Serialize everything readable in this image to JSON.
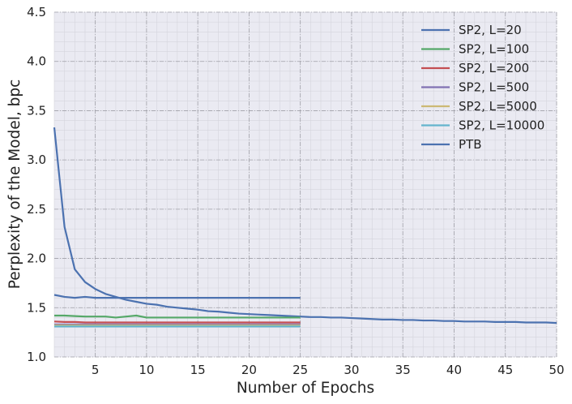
{
  "chart_data": {
    "type": "line",
    "xlabel": "Number of Epochs",
    "ylabel": "Perplexity of the Model, bpc",
    "xlim": [
      1,
      50
    ],
    "ylim": [
      1.0,
      4.5
    ],
    "x_ticks": [
      5,
      10,
      15,
      20,
      25,
      30,
      35,
      40,
      45,
      50
    ],
    "y_ticks": [
      1.0,
      1.5,
      2.0,
      2.5,
      3.0,
      3.5,
      4.0,
      4.5
    ],
    "x_tick_labels": [
      "5",
      "10",
      "15",
      "20",
      "25",
      "30",
      "35",
      "40",
      "45",
      "50"
    ],
    "y_tick_labels": [
      "1.0",
      "1.5",
      "2.0",
      "2.5",
      "3.0",
      "3.5",
      "4.0",
      "4.5"
    ],
    "grid": true,
    "legend_position": "top-right",
    "series": [
      {
        "name": "SP2, L=20",
        "color": "#4c72b0",
        "x": [
          1,
          2,
          3,
          4,
          5,
          6,
          7,
          8,
          9,
          10,
          11,
          12,
          13,
          14,
          15,
          16,
          17,
          18,
          19,
          20,
          21,
          22,
          23,
          24,
          25
        ],
        "y": [
          1.63,
          1.61,
          1.6,
          1.61,
          1.6,
          1.6,
          1.6,
          1.6,
          1.6,
          1.6,
          1.6,
          1.6,
          1.6,
          1.6,
          1.6,
          1.6,
          1.6,
          1.6,
          1.6,
          1.6,
          1.6,
          1.6,
          1.6,
          1.6,
          1.6
        ]
      },
      {
        "name": "SP2, L=100",
        "color": "#55a868",
        "x": [
          1,
          2,
          3,
          4,
          5,
          6,
          7,
          8,
          9,
          10,
          11,
          12,
          13,
          14,
          15,
          16,
          17,
          18,
          19,
          20,
          21,
          22,
          23,
          24,
          25
        ],
        "y": [
          1.42,
          1.42,
          1.415,
          1.41,
          1.41,
          1.41,
          1.4,
          1.41,
          1.42,
          1.4,
          1.4,
          1.4,
          1.4,
          1.4,
          1.4,
          1.4,
          1.4,
          1.4,
          1.4,
          1.4,
          1.4,
          1.4,
          1.4,
          1.4,
          1.4
        ]
      },
      {
        "name": "SP2, L=200",
        "color": "#c44e52",
        "x": [
          1,
          2,
          3,
          4,
          5,
          6,
          7,
          8,
          9,
          10,
          11,
          12,
          13,
          14,
          15,
          16,
          17,
          18,
          19,
          20,
          21,
          22,
          23,
          24,
          25
        ],
        "y": [
          1.36,
          1.355,
          1.355,
          1.35,
          1.35,
          1.35,
          1.35,
          1.35,
          1.35,
          1.35,
          1.35,
          1.35,
          1.35,
          1.35,
          1.35,
          1.35,
          1.35,
          1.35,
          1.35,
          1.35,
          1.35,
          1.35,
          1.35,
          1.35,
          1.35
        ]
      },
      {
        "name": "SP2, L=500",
        "color": "#8172b2",
        "x": [
          1,
          2,
          3,
          4,
          5,
          6,
          7,
          8,
          9,
          10,
          11,
          12,
          13,
          14,
          15,
          16,
          17,
          18,
          19,
          20,
          21,
          22,
          23,
          24,
          25
        ],
        "y": [
          1.33,
          1.33,
          1.33,
          1.33,
          1.33,
          1.33,
          1.33,
          1.33,
          1.33,
          1.33,
          1.33,
          1.33,
          1.33,
          1.33,
          1.33,
          1.33,
          1.33,
          1.33,
          1.33,
          1.33,
          1.33,
          1.33,
          1.33,
          1.33,
          1.33
        ]
      },
      {
        "name": "SP2, L=5000",
        "color": "#ccb974",
        "x": [
          1,
          2,
          3,
          4,
          5,
          6,
          7,
          8,
          9,
          10,
          11,
          12,
          13,
          14,
          15,
          16,
          17,
          18,
          19,
          20,
          21,
          22,
          23,
          24,
          25
        ],
        "y": [
          1.32,
          1.32,
          1.32,
          1.32,
          1.32,
          1.32,
          1.32,
          1.32,
          1.32,
          1.32,
          1.32,
          1.32,
          1.32,
          1.32,
          1.32,
          1.32,
          1.32,
          1.32,
          1.32,
          1.32,
          1.32,
          1.32,
          1.32,
          1.32,
          1.32
        ]
      },
      {
        "name": "SP2, L=10000",
        "color": "#64b5cd",
        "x": [
          1,
          2,
          3,
          4,
          5,
          6,
          7,
          8,
          9,
          10,
          11,
          12,
          13,
          14,
          15,
          16,
          17,
          18,
          19,
          20,
          21,
          22,
          23,
          24,
          25
        ],
        "y": [
          1.31,
          1.31,
          1.31,
          1.31,
          1.31,
          1.31,
          1.31,
          1.31,
          1.31,
          1.31,
          1.31,
          1.31,
          1.31,
          1.31,
          1.31,
          1.31,
          1.31,
          1.31,
          1.31,
          1.31,
          1.31,
          1.31,
          1.31,
          1.31,
          1.31
        ]
      },
      {
        "name": "PTB",
        "color": "#4c72b0",
        "x": [
          1,
          2,
          3,
          4,
          5,
          6,
          7,
          8,
          9,
          10,
          11,
          12,
          13,
          14,
          15,
          16,
          17,
          18,
          19,
          20,
          21,
          22,
          23,
          24,
          25,
          26,
          27,
          28,
          29,
          30,
          31,
          32,
          33,
          34,
          35,
          36,
          37,
          38,
          39,
          40,
          41,
          42,
          43,
          44,
          45,
          46,
          47,
          48,
          49,
          50
        ],
        "y": [
          3.33,
          2.32,
          1.89,
          1.76,
          1.69,
          1.64,
          1.61,
          1.58,
          1.56,
          1.54,
          1.53,
          1.51,
          1.5,
          1.49,
          1.48,
          1.465,
          1.46,
          1.45,
          1.44,
          1.435,
          1.43,
          1.425,
          1.42,
          1.415,
          1.41,
          1.405,
          1.405,
          1.4,
          1.4,
          1.395,
          1.39,
          1.385,
          1.38,
          1.38,
          1.375,
          1.375,
          1.37,
          1.37,
          1.365,
          1.365,
          1.36,
          1.36,
          1.36,
          1.355,
          1.355,
          1.355,
          1.35,
          1.35,
          1.35,
          1.345
        ]
      }
    ]
  }
}
